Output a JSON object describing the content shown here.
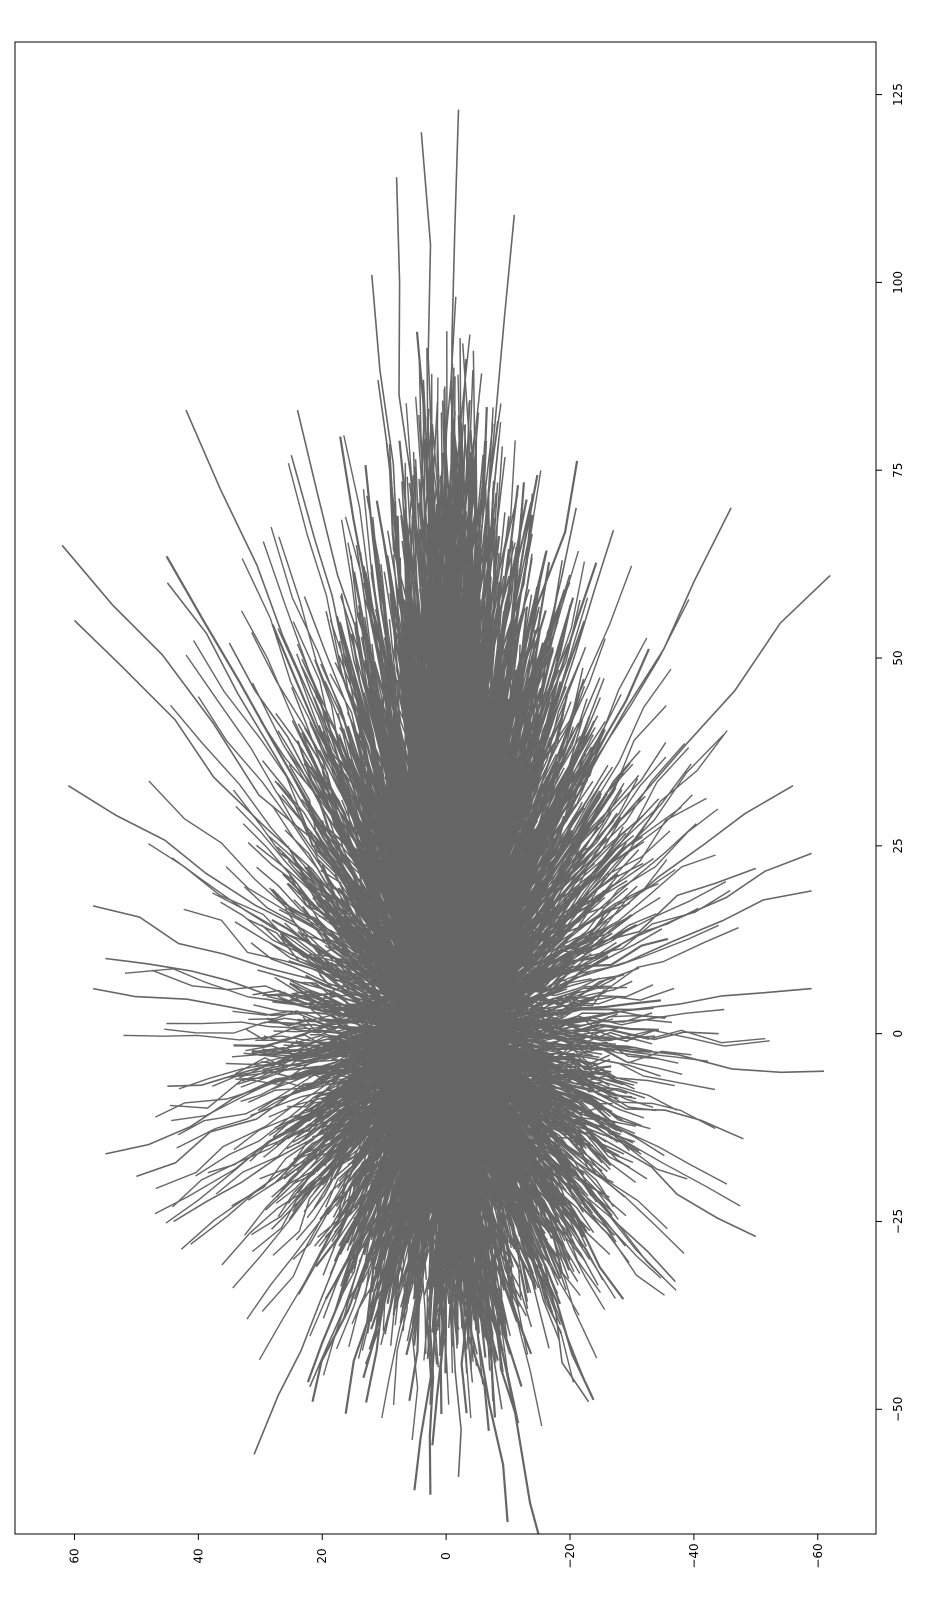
{
  "chart_data": {
    "type": "line",
    "title": "",
    "xlabel": "",
    "ylabel": "",
    "orientation": "rotated 90 degrees: x axis runs top-to-bottom along the right edge, y axis runs right-to-left along the bottom edge",
    "x_axis": {
      "position": "right",
      "ticks": [
        125,
        100,
        75,
        50,
        25,
        0,
        -25,
        -50
      ],
      "tick_labels": [
        "125",
        "100",
        "75",
        "50",
        "25",
        "0",
        "−25",
        "−50"
      ],
      "range": [
        -66.6,
        132.0
      ]
    },
    "y_axis": {
      "position": "bottom",
      "ticks": [
        60,
        40,
        20,
        0,
        -20,
        -40,
        -60
      ],
      "tick_labels": [
        "60",
        "40",
        "20",
        "0",
        "−20",
        "−40",
        "−60"
      ],
      "range": [
        -69.4,
        69.6
      ]
    },
    "grid": false,
    "legend": "none",
    "line_color": "#666666",
    "series_count": "several thousand trajectories",
    "series_description": "Many grey trajectories all radiating outward from near the origin (x≈0, y≈0), forming a dense teardrop cloud elongated along the positive x direction; the tallest reach x≈123 near y≈-2, the lowest reach x≈-58 near y≈-2, widest spread about y∈[-62, 61].",
    "outlier_endpoints": [
      {
        "x": 123,
        "y": -2
      },
      {
        "x": 120,
        "y": 4
      },
      {
        "x": 114,
        "y": 8
      },
      {
        "x": 109,
        "y": -11
      },
      {
        "x": 101,
        "y": 12
      },
      {
        "x": 87,
        "y": 11
      },
      {
        "x": 83,
        "y": 42
      },
      {
        "x": 83,
        "y": 24
      },
      {
        "x": 77,
        "y": 25
      },
      {
        "x": 70,
        "y": -46
      },
      {
        "x": 70,
        "y": -21
      },
      {
        "x": 67,
        "y": -27
      },
      {
        "x": 65,
        "y": 62
      },
      {
        "x": 61,
        "y": -62
      },
      {
        "x": 60,
        "y": 45
      },
      {
        "x": 55,
        "y": 60
      },
      {
        "x": 52,
        "y": 35
      },
      {
        "x": 33,
        "y": 61
      },
      {
        "x": 33,
        "y": -56
      },
      {
        "x": 24,
        "y": -59
      },
      {
        "x": 22,
        "y": -50
      },
      {
        "x": 19,
        "y": -59
      },
      {
        "x": 17,
        "y": 57
      },
      {
        "x": 10,
        "y": 55
      },
      {
        "x": 6,
        "y": 57
      },
      {
        "x": 6,
        "y": -59
      },
      {
        "x": 0,
        "y": -44
      },
      {
        "x": -5,
        "y": -61
      },
      {
        "x": -7,
        "y": 45
      },
      {
        "x": -14,
        "y": -48
      },
      {
        "x": -16,
        "y": 55
      },
      {
        "x": -19,
        "y": 50
      },
      {
        "x": -25,
        "y": 44
      },
      {
        "x": -27,
        "y": -50
      },
      {
        "x": -33,
        "y": -37
      },
      {
        "x": -44,
        "y": 13
      },
      {
        "x": -47,
        "y": 22
      },
      {
        "x": -49,
        "y": -23
      },
      {
        "x": -50,
        "y": -9
      },
      {
        "x": -56,
        "y": 31
      },
      {
        "x": -59,
        "y": -2
      }
    ]
  }
}
